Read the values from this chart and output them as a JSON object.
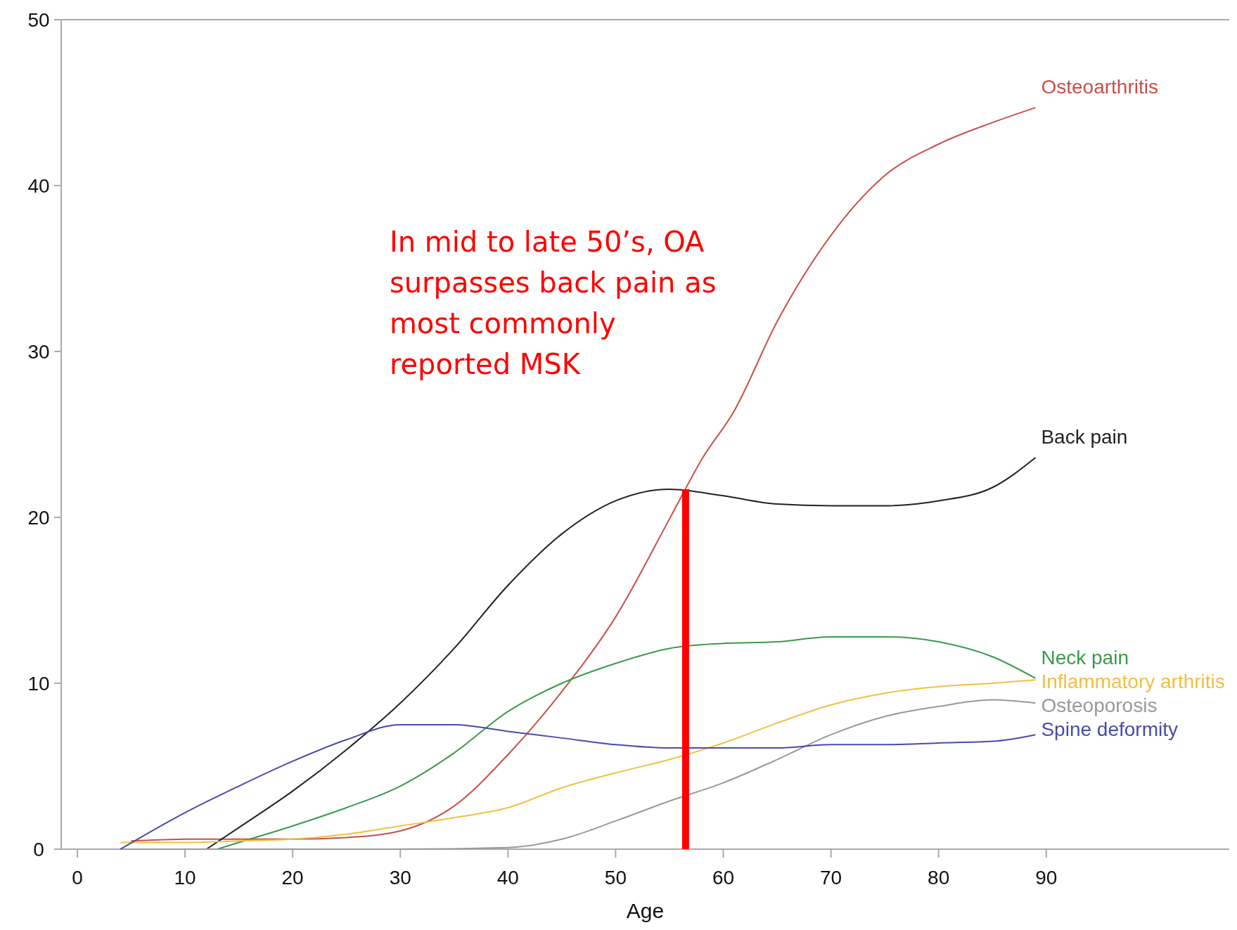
{
  "chart_data": {
    "type": "line",
    "xlabel": "Age",
    "series": [
      {
        "name": "Osteoarthritis",
        "color": "#c8504a",
        "x": [
          5,
          10,
          15,
          20,
          25,
          30,
          35,
          40,
          45,
          50,
          55,
          58,
          61,
          65,
          70,
          75,
          80,
          85,
          89
        ],
        "values": [
          0.5,
          0.6,
          0.6,
          0.6,
          0.7,
          1.1,
          2.6,
          5.7,
          9.5,
          14,
          19.9,
          23.5,
          26.4,
          31.8,
          37,
          40.6,
          42.5,
          43.8,
          44.7
        ]
      },
      {
        "name": "Back pain",
        "color": "#222222",
        "x": [
          12,
          15,
          20,
          25,
          30,
          35,
          40,
          45,
          50,
          55,
          60,
          65,
          70,
          75,
          80,
          85,
          89
        ],
        "values": [
          0,
          1.3,
          3.5,
          6,
          8.8,
          12.1,
          15.9,
          19,
          21,
          21.7,
          21.3,
          20.8,
          20.7,
          20.7,
          21,
          21.8,
          23.6
        ]
      },
      {
        "name": "Neck pain",
        "color": "#3a9a4a",
        "x": [
          13,
          15,
          20,
          25,
          30,
          35,
          40,
          45,
          50,
          55,
          60,
          65,
          70,
          75,
          80,
          85,
          89
        ],
        "values": [
          0,
          0.4,
          1.4,
          2.5,
          3.8,
          5.8,
          8.3,
          10,
          11.2,
          12.1,
          12.4,
          12.5,
          12.8,
          12.8,
          12.5,
          11.6,
          10.3
        ]
      },
      {
        "name": "Inflammatory arthritis",
        "color": "#f0c040",
        "x": [
          4,
          10,
          15,
          20,
          25,
          30,
          35,
          40,
          45,
          50,
          55,
          60,
          65,
          70,
          75,
          80,
          85,
          89
        ],
        "values": [
          0.4,
          0.4,
          0.5,
          0.6,
          0.9,
          1.4,
          1.9,
          2.5,
          3.7,
          4.6,
          5.4,
          6.4,
          7.6,
          8.7,
          9.4,
          9.8,
          10,
          10.2
        ]
      },
      {
        "name": "Osteoporosis",
        "color": "#999999",
        "x": [
          4,
          10,
          20,
          30,
          40,
          45,
          50,
          55,
          60,
          65,
          70,
          75,
          80,
          85,
          89
        ],
        "values": [
          0,
          0,
          0,
          0,
          0.1,
          0.6,
          1.7,
          2.9,
          4,
          5.4,
          6.9,
          8,
          8.6,
          9,
          8.8
        ]
      },
      {
        "name": "Spine deformity",
        "color": "#4a4ab0",
        "x": [
          4,
          10,
          15,
          20,
          25,
          30,
          35,
          40,
          45,
          50,
          55,
          60,
          65,
          70,
          75,
          80,
          85,
          89
        ],
        "values": [
          0,
          2.2,
          3.8,
          5.3,
          6.6,
          7.5,
          7.5,
          7.1,
          6.7,
          6.3,
          6.1,
          6.1,
          6.1,
          6.3,
          6.3,
          6.4,
          6.5,
          6.9
        ]
      },
      {
        "color": "#ff0000",
        "x": [
          56.5,
          56.5
        ],
        "values": [
          0,
          21.7
        ]
      }
    ],
    "xlim": [
      -1.5,
      107
    ],
    "ylim": [
      0,
      50
    ],
    "xticks": [
      0,
      10,
      20,
      30,
      40,
      50,
      60,
      70,
      80,
      90
    ],
    "yticks": [
      0,
      10,
      20,
      30,
      40,
      50
    ],
    "grid": false,
    "marker": "none",
    "line_style": "solid",
    "annotations": [
      "In mid to late 50’s, OA\nsurpasses back pain as\nmost commonly\nreported MSK"
    ]
  }
}
